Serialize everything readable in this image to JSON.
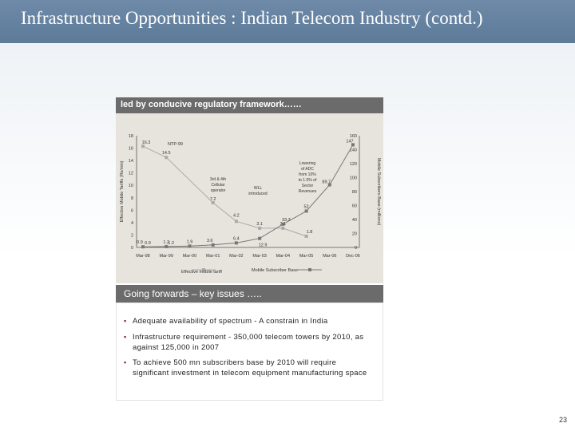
{
  "slide": {
    "title": "Infrastructure Opportunities : Indian Telecom Industry (contd.)",
    "page_number": "23"
  },
  "panel_title": "led by conducive regulatory  framework……",
  "issues": {
    "title": "Going forwards – key issues …..",
    "bullets": [
      "Adequate availability of spectrum - A constrain in India",
      "Infrastructure requirement - 350,000 telecom towers by 2010, as against 125,000 in 2007",
      "To achieve 500 mn subscribers base  by 2010 will require significant investment in telecom equipment manufacturing space"
    ]
  },
  "chart_data": {
    "type": "line",
    "categories": [
      "Mar-98",
      "Mar-99",
      "Mar-00",
      "Mar-01",
      "Mar-02",
      "Mar-03",
      "Mar-04",
      "Mar-05",
      "Mar-06",
      "Dec-06"
    ],
    "ylabel": "Effective Mobile Tariffs (Rs/min)",
    "y2label": "Mobile Subscribers Base (millions)",
    "ylim": [
      0,
      18
    ],
    "y2lim": [
      0,
      160
    ],
    "yticks": [
      "0",
      "2",
      "4",
      "6",
      "8",
      "10",
      "12",
      "14",
      "16",
      "18"
    ],
    "y2ticks": [
      "0",
      "20",
      "40",
      "60",
      "80",
      "100",
      "120",
      "140",
      "160"
    ],
    "series": [
      {
        "name": "Effective mobile tariff",
        "axis": "left",
        "color": "#aaaaaa",
        "values": [
          16.3,
          14.5,
          null,
          7.2,
          4.2,
          3.1,
          3.1,
          1.8,
          null,
          null
        ],
        "labels": [
          "16.3",
          "14.5",
          "",
          "7.2",
          "4.2",
          "3.1",
          "3.1",
          "1.8",
          "",
          ""
        ]
      },
      {
        "name": "Mobile Subscriber Base",
        "axis": "right",
        "color": "#777777",
        "values": [
          0.9,
          1.2,
          1.9,
          3.6,
          6.4,
          12.9,
          33.3,
          52,
          89.7,
          147
        ],
        "labels": [
          "0.9",
          "1.2",
          "1.9",
          "3.6",
          "6.4",
          "12.9",
          "33.3",
          "52",
          "89.7",
          "147"
        ]
      }
    ],
    "extra_labels": [
      "1.2",
      "0.9"
    ],
    "annotations": [
      "NTP-99",
      "3rd & 4th Cellular operator",
      "WLL introduced",
      "Lowering of ADC from 10% to 1.5% of Sector Revenues"
    ],
    "legend_position": "bottom",
    "grid": false
  }
}
